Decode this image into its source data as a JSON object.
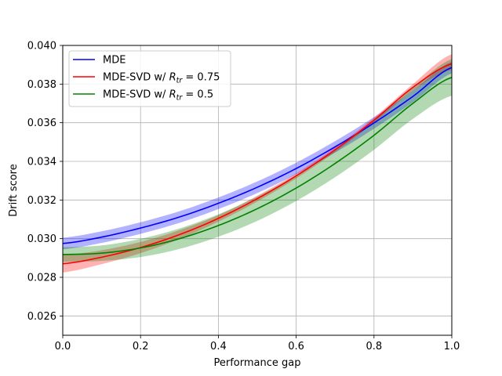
{
  "chart_data": {
    "type": "line",
    "title": "",
    "xlabel": "Performance gap",
    "ylabel": "Drift score",
    "xlim": [
      0.0,
      1.0
    ],
    "ylim": [
      0.025,
      0.04
    ],
    "grid": true,
    "legend_position": "top-left",
    "x_ticks": [
      0.0,
      0.2,
      0.4,
      0.6,
      0.8,
      1.0
    ],
    "x_tick_labels": [
      "0.0",
      "0.2",
      "0.4",
      "0.6",
      "0.8",
      "1.0"
    ],
    "y_ticks": [
      0.026,
      0.028,
      0.03,
      0.032,
      0.034,
      0.036,
      0.038,
      0.04
    ],
    "y_tick_labels": [
      "0.026",
      "0.028",
      "0.030",
      "0.032",
      "0.034",
      "0.036",
      "0.038",
      "0.040"
    ],
    "x": [
      0.0,
      0.1,
      0.2,
      0.3,
      0.4,
      0.5,
      0.6,
      0.7,
      0.8,
      0.9,
      1.0
    ],
    "series": [
      {
        "name": "MDE",
        "legend_prefix": "MDE",
        "legend_math": "",
        "color": "#0000ff",
        "band_color": "#0000ff",
        "values": [
          0.02975,
          0.03008,
          0.03055,
          0.03112,
          0.03183,
          0.03266,
          0.03363,
          0.03475,
          0.03599,
          0.03736,
          0.03886
        ],
        "lower": [
          0.02945,
          0.02978,
          0.03025,
          0.03082,
          0.03153,
          0.03236,
          0.03333,
          0.03445,
          0.03569,
          0.03706,
          0.03856
        ],
        "upper": [
          0.03005,
          0.03038,
          0.03085,
          0.03142,
          0.03213,
          0.03296,
          0.03393,
          0.03505,
          0.03629,
          0.03766,
          0.03916
        ]
      },
      {
        "name": "MDE-SVD w/ R_tr = 0.75",
        "legend_prefix": "MDE-SVD w/ ",
        "legend_math": "R",
        "legend_sub": "tr",
        "legend_suffix": " = 0.75",
        "color": "#ff0000",
        "band_color": "#ff0000",
        "values": [
          0.0287,
          0.02904,
          0.02954,
          0.03021,
          0.03105,
          0.03207,
          0.03325,
          0.0346,
          0.03613,
          0.03783,
          0.03905
        ],
        "lower": [
          0.02825,
          0.02868,
          0.02925,
          0.02998,
          0.03088,
          0.03192,
          0.03312,
          0.03448,
          0.036,
          0.03766,
          0.03875
        ],
        "upper": [
          0.02915,
          0.0294,
          0.02983,
          0.03044,
          0.03122,
          0.03222,
          0.03338,
          0.03472,
          0.03626,
          0.038,
          0.03955
        ]
      },
      {
        "name": "MDE-SVD w/ R_tr = 0.5",
        "legend_prefix": "MDE-SVD w/ ",
        "legend_math": "R",
        "legend_sub": "tr",
        "legend_suffix": " = 0.5",
        "color": "#008000",
        "band_color": "#008000",
        "values": [
          0.02918,
          0.02925,
          0.02952,
          0.03,
          0.03068,
          0.03155,
          0.03262,
          0.03389,
          0.03535,
          0.037,
          0.03835
        ],
        "lower": [
          0.0288,
          0.02885,
          0.02905,
          0.02947,
          0.0301,
          0.03092,
          0.03195,
          0.03318,
          0.0346,
          0.0362,
          0.0374
        ],
        "upper": [
          0.02956,
          0.02965,
          0.02999,
          0.03053,
          0.03126,
          0.03218,
          0.03329,
          0.0346,
          0.0361,
          0.0378,
          0.0393
        ]
      }
    ]
  }
}
